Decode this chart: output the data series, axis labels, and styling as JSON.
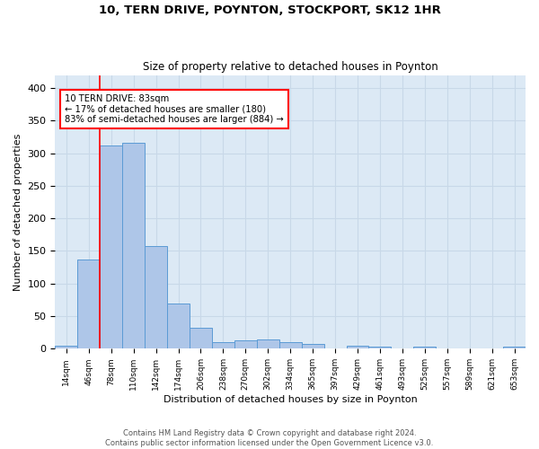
{
  "title": "10, TERN DRIVE, POYNTON, STOCKPORT, SK12 1HR",
  "subtitle": "Size of property relative to detached houses in Poynton",
  "xlabel": "Distribution of detached houses by size in Poynton",
  "ylabel": "Number of detached properties",
  "bin_labels": [
    "14sqm",
    "46sqm",
    "78sqm",
    "110sqm",
    "142sqm",
    "174sqm",
    "206sqm",
    "238sqm",
    "270sqm",
    "302sqm",
    "334sqm",
    "365sqm",
    "397sqm",
    "429sqm",
    "461sqm",
    "493sqm",
    "525sqm",
    "557sqm",
    "589sqm",
    "621sqm",
    "653sqm"
  ],
  "bar_values": [
    4,
    137,
    312,
    316,
    158,
    70,
    32,
    10,
    13,
    14,
    10,
    8,
    0,
    5,
    3,
    0,
    3,
    0,
    0,
    0,
    3
  ],
  "bar_color": "#aec6e8",
  "bar_edge_color": "#5b9bd5",
  "annotation_line1": "10 TERN DRIVE: 83sqm",
  "annotation_line2": "← 17% of detached houses are smaller (180)",
  "annotation_line3": "83% of semi-detached houses are larger (884) →",
  "grid_color": "#c8d8e8",
  "background_color": "#dce9f5",
  "footer_line1": "Contains HM Land Registry data © Crown copyright and database right 2024.",
  "footer_line2": "Contains public sector information licensed under the Open Government Licence v3.0.",
  "ylim": [
    0,
    420
  ],
  "yticks": [
    0,
    50,
    100,
    150,
    200,
    250,
    300,
    350,
    400
  ],
  "vline_bin_index": 2
}
